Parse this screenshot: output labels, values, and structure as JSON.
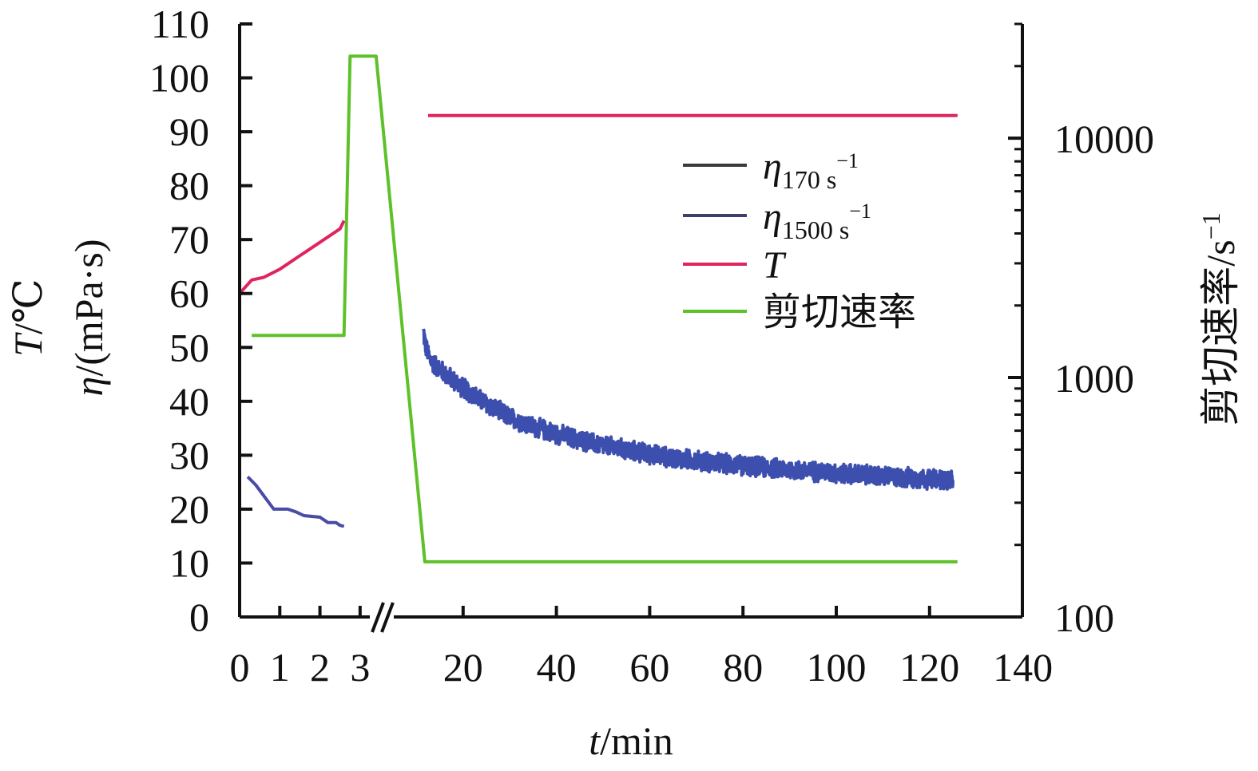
{
  "chart_data": {
    "type": "line",
    "x_axis": {
      "label_italic": "t",
      "label_unit": "/min",
      "broken": true,
      "segment1": {
        "range": [
          0,
          3.6
        ],
        "tick_labels": [
          "0",
          "1",
          "2",
          "3"
        ],
        "tick_values": [
          0,
          1,
          2,
          3
        ]
      },
      "segment2": {
        "range": [
          12,
          140
        ],
        "tick_labels": [
          "20",
          "40",
          "60",
          "80",
          "100",
          "120",
          "140"
        ],
        "tick_values": [
          20,
          40,
          60,
          80,
          100,
          120,
          140
        ]
      }
    },
    "y_left": {
      "label_line1_italic": "T",
      "label_line1_unit": "/℃",
      "label_line2_italic": "η",
      "label_line2_unit": "/(mPa·s)",
      "range": [
        0,
        110
      ],
      "tick_labels": [
        "0",
        "10",
        "20",
        "30",
        "40",
        "50",
        "60",
        "70",
        "80",
        "90",
        "100",
        "110"
      ]
    },
    "y_right": {
      "label": "剪切速率/s",
      "label_superscript": "−1",
      "scale": "log",
      "range": [
        100,
        30000
      ],
      "tick_labels": [
        "100",
        "1000",
        "10000"
      ],
      "tick_values": [
        100,
        1000,
        10000
      ]
    },
    "legend": {
      "placement": "upper-right-inside",
      "items": [
        {
          "key": "eta170",
          "symbol": "η",
          "subscript": "170 s",
          "superscript": "−1",
          "color": "#3a3a3a"
        },
        {
          "key": "eta1500",
          "symbol": "η",
          "subscript": "1500 s",
          "superscript": "−1",
          "color": "#3f3f6e"
        },
        {
          "key": "T",
          "symbol": "T",
          "subscript": "",
          "superscript": "",
          "color": "#e0245e"
        },
        {
          "key": "rate",
          "symbol": "剪切速率",
          "subscript": "",
          "superscript": "",
          "color": "#5ec12a"
        }
      ]
    },
    "series": [
      {
        "name": "T",
        "axis": "left",
        "color": "#e0245e",
        "segments": [
          {
            "points": [
              [
                0,
                60
              ],
              [
                0.3,
                62.5
              ],
              [
                0.6,
                63
              ],
              [
                1.0,
                64.5
              ],
              [
                1.5,
                67
              ],
              [
                2.0,
                69.5
              ],
              [
                2.5,
                72
              ],
              [
                2.6,
                73.5
              ]
            ]
          },
          {
            "points": [
              [
                12.5,
                93
              ],
              [
                126,
                93
              ]
            ]
          }
        ]
      },
      {
        "name": "η1500",
        "axis": "left",
        "color": "#4a4aa8",
        "segments": [
          {
            "points": [
              [
                0.2,
                26
              ],
              [
                0.4,
                24.5
              ],
              [
                0.7,
                21.5
              ],
              [
                0.85,
                20
              ],
              [
                1.2,
                20
              ],
              [
                1.4,
                19.5
              ],
              [
                1.6,
                18.8
              ],
              [
                2.0,
                18.5
              ],
              [
                2.2,
                17.5
              ],
              [
                2.4,
                17.5
              ],
              [
                2.5,
                17
              ],
              [
                2.6,
                16.8
              ]
            ]
          }
        ]
      },
      {
        "name": "η170",
        "axis": "left",
        "color": "#3d4fae",
        "noisy": true,
        "noise_amplitude": 1.6,
        "segments": [
          {
            "points": [
              [
                11.5,
                53
              ],
              [
                12,
                50
              ],
              [
                13,
                47.5
              ],
              [
                15,
                46
              ],
              [
                17,
                44.5
              ],
              [
                20,
                42.5
              ],
              [
                25,
                39.5
              ],
              [
                30,
                37
              ],
              [
                35,
                35.3
              ],
              [
                40,
                34
              ],
              [
                45,
                32.8
              ],
              [
                50,
                31.8
              ],
              [
                55,
                31
              ],
              [
                60,
                30.2
              ],
              [
                65,
                29.5
              ],
              [
                70,
                29
              ],
              [
                75,
                28.5
              ],
              [
                80,
                28.1
              ],
              [
                85,
                27.7
              ],
              [
                90,
                27.3
              ],
              [
                95,
                27
              ],
              [
                100,
                26.7
              ],
              [
                105,
                26.4
              ],
              [
                110,
                26.1
              ],
              [
                115,
                25.8
              ],
              [
                120,
                25.6
              ],
              [
                125,
                25.4
              ]
            ]
          }
        ]
      },
      {
        "name": "剪切速率",
        "axis": "right",
        "color": "#5ec12a",
        "segments": [
          {
            "points": [
              [
                0.3,
                1500
              ],
              [
                2.6,
                1500
              ],
              [
                2.75,
                22000
              ],
              [
                3.4,
                22000
              ],
              [
                11.8,
                170
              ],
              [
                126,
                170
              ]
            ]
          }
        ]
      }
    ]
  }
}
